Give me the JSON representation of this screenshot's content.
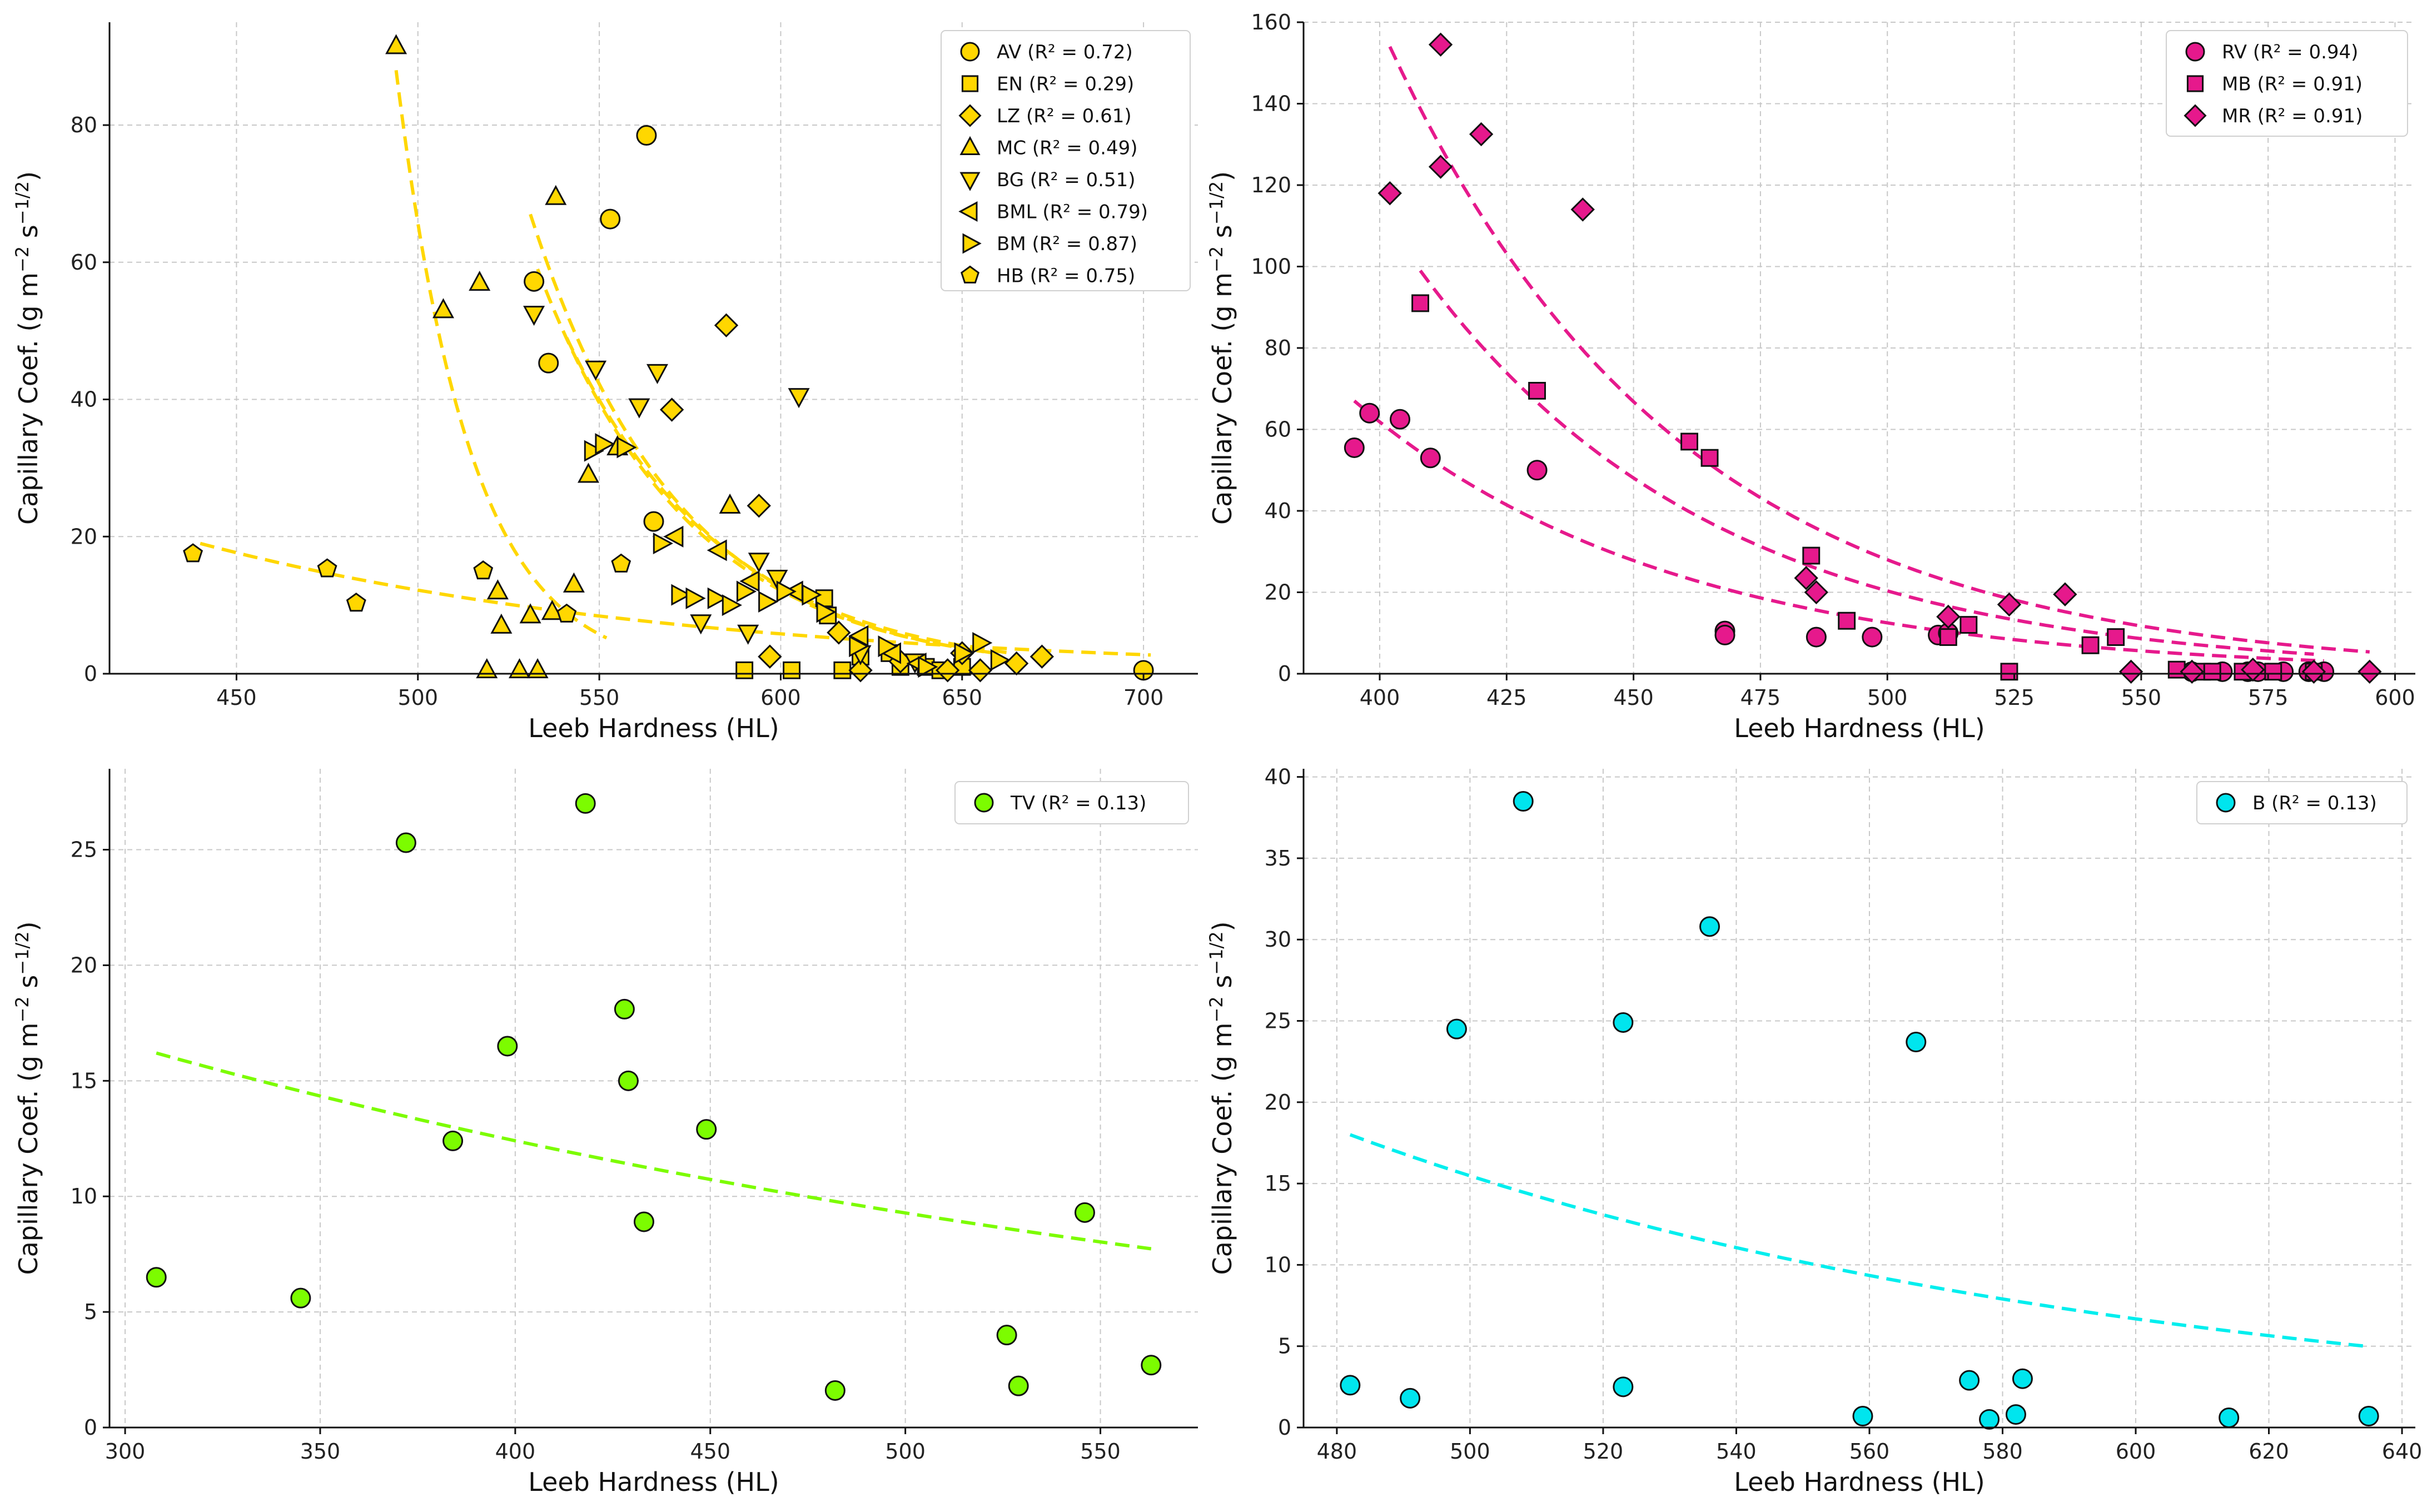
{
  "figure_title": "",
  "chart_data": [
    {
      "id": "p1",
      "type": "scatter",
      "title": "",
      "xlabel": "Leeb Hardness (HL)",
      "ylabel": "Capillary Coef. (g m⁻² s⁻¹ᐟ²)",
      "ylabel_parts": {
        "base": "Capillary Coef. (g m",
        "exp1": "−2",
        "mid": " s",
        "exp2": "−1/2",
        "end": ")"
      },
      "xlim": [
        415,
        715
      ],
      "ylim": [
        0,
        95
      ],
      "xticks": [
        450,
        500,
        550,
        600,
        650,
        700
      ],
      "yticks": [
        0,
        20,
        40,
        60,
        80
      ],
      "grid": true,
      "legend_position": "top-right",
      "color": "#FFD700",
      "line_color": "#FFD700",
      "series": [
        {
          "name": "AV (R² = 0.72)",
          "marker": "circle",
          "points": [
            [
              532,
              57.2
            ],
            [
              536,
              45.3
            ],
            [
              553,
              66.3
            ],
            [
              563,
              78.5
            ],
            [
              565,
              22.2
            ],
            [
              700,
              0.5
            ]
          ]
        },
        {
          "name": "EN (R² = 0.29)",
          "marker": "square",
          "points": [
            [
              590,
              0.5
            ],
            [
              603,
              0.5
            ],
            [
              612,
              11
            ],
            [
              613,
              8.5
            ],
            [
              617,
              0.5
            ],
            [
              622,
              2.5
            ],
            [
              630,
              3
            ],
            [
              633,
              1
            ],
            [
              640,
              1
            ],
            [
              644,
              0.5
            ],
            [
              650,
              1
            ]
          ]
        },
        {
          "name": "LZ (R² = 0.61)",
          "marker": "diamond",
          "points": [
            [
              570,
              38.5
            ],
            [
              585,
              50.8
            ],
            [
              594,
              24.5
            ],
            [
              597,
              2.5
            ],
            [
              616,
              6
            ],
            [
              622,
              0.5
            ],
            [
              633,
              1.8
            ],
            [
              646,
              0.5
            ],
            [
              650,
              3
            ],
            [
              655,
              0.5
            ],
            [
              665,
              1.5
            ],
            [
              672,
              2.5
            ]
          ]
        },
        {
          "name": "MC (R² = 0.49)",
          "marker": "triangle-up",
          "points": [
            [
              494,
              91.5
            ],
            [
              507,
              53
            ],
            [
              517,
              57
            ],
            [
              519,
              0.5
            ],
            [
              522,
              12
            ],
            [
              523,
              7
            ],
            [
              528,
              0.5
            ],
            [
              531,
              8.5
            ],
            [
              533,
              0.5
            ],
            [
              537,
              9
            ],
            [
              538,
              69.5
            ],
            [
              543,
              13
            ],
            [
              547,
              29
            ],
            [
              555,
              33
            ],
            [
              586,
              24.5
            ]
          ]
        },
        {
          "name": "BG (R² = 0.51)",
          "marker": "triangle-down",
          "points": [
            [
              532,
              52.5
            ],
            [
              549,
              44.5
            ],
            [
              561,
              39
            ],
            [
              566,
              44
            ],
            [
              578,
              7.5
            ],
            [
              591,
              6
            ],
            [
              594,
              16.5
            ],
            [
              599,
              14
            ],
            [
              605,
              40.5
            ],
            [
              622,
              3
            ],
            [
              637,
              1.8
            ]
          ]
        },
        {
          "name": "BML (R² = 0.79)",
          "marker": "triangle-left",
          "points": [
            [
              571,
              20
            ],
            [
              583,
              18
            ],
            [
              592,
              13.5
            ],
            [
              604,
              12
            ],
            [
              622,
              5.5
            ],
            [
              631,
              3
            ],
            [
              638,
              1.5
            ]
          ]
        },
        {
          "name": "BM (R² = 0.87)",
          "marker": "triangle-right",
          "points": [
            [
              548,
              32.5
            ],
            [
              551,
              33.5
            ],
            [
              557,
              33
            ],
            [
              567,
              19
            ],
            [
              572,
              11.5
            ],
            [
              576,
              11
            ],
            [
              582,
              11
            ],
            [
              586,
              10
            ],
            [
              590,
              12
            ],
            [
              596,
              10.5
            ],
            [
              601,
              12
            ],
            [
              608,
              11.5
            ],
            [
              612,
              9
            ],
            [
              621,
              4
            ],
            [
              629,
              4
            ],
            [
              640,
              1
            ],
            [
              650,
              3
            ],
            [
              655,
              4.5
            ],
            [
              660,
              2
            ]
          ]
        },
        {
          "name": "HB (R² = 0.75)",
          "marker": "pentagon",
          "points": [
            [
              438,
              17.5
            ],
            [
              475,
              15.3
            ],
            [
              483,
              10.3
            ],
            [
              518,
              15
            ],
            [
              541,
              8.7
            ],
            [
              556,
              16
            ]
          ]
        }
      ],
      "fit_curves": [
        {
          "x": [
            494,
            552
          ],
          "a": 88,
          "k": 0.0487,
          "x0": 494
        },
        {
          "x": [
            440,
            702
          ],
          "a": 19,
          "k": 0.0074,
          "x0": 440
        },
        {
          "x": [
            531,
            656
          ],
          "a": 67,
          "k": 0.0243,
          "x0": 531
        },
        {
          "x": [
            533,
            660
          ],
          "a": 59,
          "k": 0.0236,
          "x0": 533
        },
        {
          "x": [
            541,
            664
          ],
          "a": 49,
          "k": 0.0228,
          "x0": 541
        }
      ]
    },
    {
      "id": "p2",
      "type": "scatter",
      "title": "",
      "xlabel": "Leeb Hardness (HL)",
      "ylabel": "Capillary Coef. (g m⁻² s⁻¹ᐟ²)",
      "ylabel_parts": {
        "base": "Capillary Coef. (g m",
        "exp1": "−2",
        "mid": " s",
        "exp2": "−1/2",
        "end": ")"
      },
      "xlim": [
        385,
        604
      ],
      "ylim": [
        0,
        160
      ],
      "xticks": [
        400,
        425,
        450,
        475,
        500,
        525,
        550,
        575,
        600
      ],
      "yticks": [
        0,
        20,
        40,
        60,
        80,
        100,
        120,
        140,
        160
      ],
      "grid": true,
      "legend_position": "top-right",
      "color": "#E6198C",
      "line_color": "#E6198C",
      "series": [
        {
          "name": "RV (R² = 0.94)",
          "marker": "circle",
          "points": [
            [
              395,
              55.5
            ],
            [
              398,
              64
            ],
            [
              404,
              62.5
            ],
            [
              410,
              53
            ],
            [
              431,
              50
            ],
            [
              468,
              10.5
            ],
            [
              468,
              9.5
            ],
            [
              486,
              9
            ],
            [
              497,
              9
            ],
            [
              510,
              9.5
            ],
            [
              512,
              10
            ],
            [
              560,
              0.5
            ],
            [
              566,
              0.5
            ],
            [
              571,
              0.5
            ],
            [
              573,
              0.5
            ],
            [
              578,
              0.5
            ],
            [
              583,
              0.5
            ],
            [
              586,
              0.5
            ]
          ]
        },
        {
          "name": "MB (R² = 0.91)",
          "marker": "square",
          "points": [
            [
              408,
              91
            ],
            [
              431,
              69.5
            ],
            [
              461,
              57
            ],
            [
              465,
              53
            ],
            [
              485,
              29
            ],
            [
              492,
              13
            ],
            [
              512,
              9
            ],
            [
              516,
              12
            ],
            [
              524,
              0.5
            ],
            [
              540,
              7
            ],
            [
              545,
              9
            ],
            [
              557,
              1
            ],
            [
              562,
              0.5
            ],
            [
              564,
              0.5
            ],
            [
              570,
              0.5
            ],
            [
              576,
              0.5
            ],
            [
              584,
              0.5
            ]
          ]
        },
        {
          "name": "MR (R² = 0.91)",
          "marker": "diamond",
          "points": [
            [
              402,
              118
            ],
            [
              412,
              154.5
            ],
            [
              412,
              124.5
            ],
            [
              420,
              132.5
            ],
            [
              440,
              114
            ],
            [
              484,
              23.5
            ],
            [
              486,
              20
            ],
            [
              512,
              14
            ],
            [
              524,
              17
            ],
            [
              535,
              19.5
            ],
            [
              548,
              0.5
            ],
            [
              560,
              0.5
            ],
            [
              572,
              1
            ],
            [
              584,
              0.5
            ],
            [
              595,
              0.5
            ]
          ]
        }
      ],
      "fit_curves": [
        {
          "x": [
            395,
            586
          ],
          "a": 67,
          "k": 0.016,
          "x0": 395
        },
        {
          "x": [
            408,
            584
          ],
          "a": 99,
          "k": 0.0172,
          "x0": 408
        },
        {
          "x": [
            402,
            595
          ],
          "a": 154,
          "k": 0.0174,
          "x0": 402
        }
      ]
    },
    {
      "id": "p3",
      "type": "scatter",
      "title": "",
      "xlabel": "Leeb Hardness (HL)",
      "ylabel": "Capillary Coef. (g m⁻² s⁻¹ᐟ²)",
      "ylabel_parts": {
        "base": "Capillary Coef. (g m",
        "exp1": "−2",
        "mid": " s",
        "exp2": "−1/2",
        "end": ")"
      },
      "xlim": [
        296,
        575
      ],
      "ylim": [
        0,
        28.5
      ],
      "xticks": [
        300,
        350,
        400,
        450,
        500,
        550
      ],
      "yticks": [
        0,
        5,
        10,
        15,
        20,
        25
      ],
      "grid": true,
      "legend_position": "top-right",
      "color": "#7CFC00",
      "line_color": "#7CFC00",
      "series": [
        {
          "name": "TV (R² = 0.13)",
          "marker": "circle",
          "points": [
            [
              308,
              6.5
            ],
            [
              345,
              5.6
            ],
            [
              372,
              25.3
            ],
            [
              384,
              12.4
            ],
            [
              398,
              16.5
            ],
            [
              418,
              27
            ],
            [
              428,
              18.1
            ],
            [
              429,
              15
            ],
            [
              433,
              8.9
            ],
            [
              449,
              12.9
            ],
            [
              482,
              1.6
            ],
            [
              526,
              4
            ],
            [
              529,
              1.8
            ],
            [
              546,
              9.3
            ],
            [
              563,
              2.7
            ]
          ]
        }
      ],
      "fit_curves": [
        {
          "x": [
            308,
            563
          ],
          "a": 16.2,
          "k": 0.0029,
          "x0": 308
        }
      ]
    },
    {
      "id": "p4",
      "type": "scatter",
      "title": "",
      "xlabel": "Leeb Hardness (HL)",
      "ylabel": "Capillary Coef. (g m⁻² s⁻¹ᐟ²)",
      "ylabel_parts": {
        "base": "Capillary Coef. (g m",
        "exp1": "−2",
        "mid": " s",
        "exp2": "−1/2",
        "end": ")"
      },
      "xlim": [
        475,
        642
      ],
      "ylim": [
        0,
        40.5
      ],
      "xticks": [
        480,
        500,
        520,
        540,
        560,
        580,
        600,
        620,
        640
      ],
      "yticks": [
        0,
        5,
        10,
        15,
        20,
        25,
        30,
        35,
        40
      ],
      "grid": true,
      "legend_position": "top-right",
      "color": "#00E5EE",
      "line_color": "#00EEEE",
      "series": [
        {
          "name": "B (R² = 0.13)",
          "marker": "circle",
          "points": [
            [
              482,
              2.6
            ],
            [
              491,
              1.8
            ],
            [
              498,
              24.5
            ],
            [
              508,
              38.5
            ],
            [
              523,
              24.9
            ],
            [
              523,
              2.5
            ],
            [
              536,
              30.8
            ],
            [
              559,
              0.7
            ],
            [
              567,
              23.7
            ],
            [
              575,
              2.9
            ],
            [
              578,
              0.5
            ],
            [
              582,
              0.8
            ],
            [
              583,
              3
            ],
            [
              614,
              0.6
            ],
            [
              635,
              0.7
            ]
          ]
        }
      ],
      "fit_curves": [
        {
          "x": [
            482,
            635
          ],
          "a": 18,
          "k": 0.0084,
          "x0": 482
        }
      ]
    }
  ]
}
